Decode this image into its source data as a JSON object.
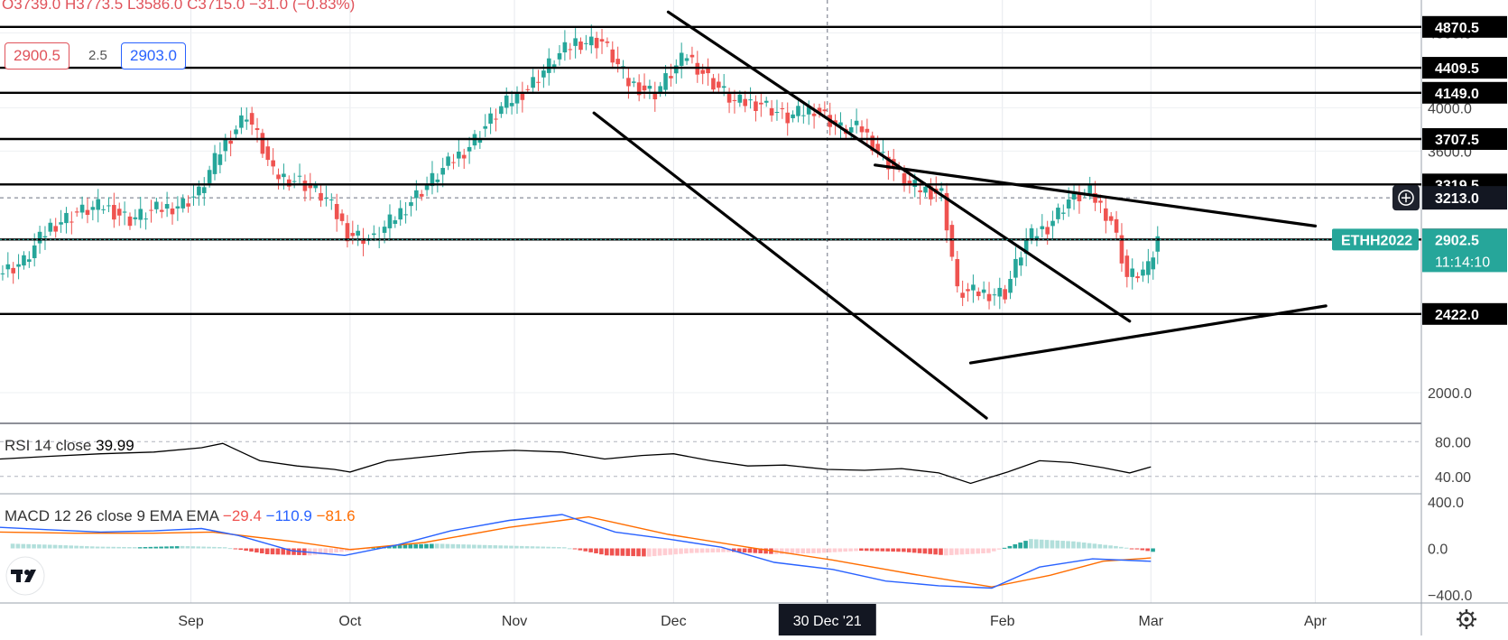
{
  "header": {
    "ohlc_text": "O3739.0 H3773.5 L3586.0 C3715.0 −31.0 (−0.83%)",
    "bid": "2900.5",
    "spread": "2.5",
    "ask": "2903.0"
  },
  "colors": {
    "up": "#26a69a",
    "down": "#ef5350",
    "rsi": "#000000",
    "macd": "#2962ff",
    "signal": "#ff6d00",
    "level_line": "#000000"
  },
  "chart_data": [
    {
      "type": "candlestick",
      "title": "",
      "instrument": "ETHH2022",
      "y_scale": "log",
      "ylim": [
        1860,
        5200
      ],
      "y_ticks": [
        "4800.0",
        "4000.0",
        "3600.0",
        "2000.0"
      ],
      "x_ticks": [
        "Sep",
        "Oct",
        "Nov",
        "Dec",
        "30 Dec '21",
        "Feb",
        "Mar",
        "Apr"
      ],
      "x_tick_dates": [
        "2021-09-01",
        "2021-10-01",
        "2021-11-01",
        "2021-12-01",
        "2021-12-30",
        "2022-02-01",
        "2022-03-01",
        "2022-04-01"
      ],
      "x_range": [
        "2021-07-27",
        "2022-04-21"
      ],
      "grid": true,
      "crosshair_date": "2021-12-30",
      "horizontal_levels": [
        {
          "label": "4870.5",
          "value": 4870.5
        },
        {
          "label": "4409.5",
          "value": 4409.5
        },
        {
          "label": "4149.0",
          "value": 4149.0
        },
        {
          "label": "3707.5",
          "value": 3707.5
        },
        {
          "label": "3319.5",
          "value": 3319.5
        },
        {
          "label": "2903.5",
          "value": 2903.5
        },
        {
          "label": "2422.0",
          "value": 2422.0
        }
      ],
      "price_labels": [
        {
          "label": "3213.0",
          "value": 3213.0,
          "style": "crosshair"
        },
        {
          "label": "2902.5",
          "value": 2902.5,
          "style": "last",
          "tag": "ETHH2022",
          "countdown": "11:14:10"
        }
      ],
      "trendlines": [
        {
          "from": {
            "date": "2021-11-30",
            "value": 5050
          },
          "to": {
            "date": "2022-02-25",
            "value": 2380
          }
        },
        {
          "from": {
            "date": "2021-11-16",
            "value": 3950
          },
          "to": {
            "date": "2022-01-29",
            "value": 1880
          }
        },
        {
          "from": {
            "date": "2022-01-08",
            "value": 3480
          },
          "to": {
            "date": "2022-04-01",
            "value": 3000
          }
        },
        {
          "from": {
            "date": "2022-01-26",
            "value": 2150
          },
          "to": {
            "date": "2022-04-03",
            "value": 2470
          }
        }
      ],
      "series": [
        {
          "name": "ETHH2022",
          "dates": [
            "2021-07-27",
            "2021-08-01",
            "2021-08-06",
            "2021-08-11",
            "2021-08-16",
            "2021-08-21",
            "2021-08-26",
            "2021-08-31",
            "2021-09-03",
            "2021-09-07",
            "2021-09-12",
            "2021-09-17",
            "2021-09-22",
            "2021-09-27",
            "2021-10-01",
            "2021-10-06",
            "2021-10-12",
            "2021-10-18",
            "2021-10-24",
            "2021-10-30",
            "2021-11-04",
            "2021-11-09",
            "2021-11-13",
            "2021-11-18",
            "2021-11-23",
            "2021-11-28",
            "2021-12-01",
            "2021-12-04",
            "2021-12-08",
            "2021-12-13",
            "2021-12-18",
            "2021-12-23",
            "2021-12-28",
            "2022-01-02",
            "2022-01-06",
            "2022-01-10",
            "2022-01-15",
            "2022-01-21",
            "2022-01-24",
            "2022-01-28",
            "2022-02-02",
            "2022-02-06",
            "2022-02-10",
            "2022-02-14",
            "2022-02-18",
            "2022-02-22",
            "2022-02-25",
            "2022-03-01"
          ],
          "close": [
            2750,
            3000,
            3100,
            3150,
            3050,
            3120,
            3170,
            3250,
            3600,
            3950,
            3400,
            3350,
            3200,
            2950,
            2900,
            3150,
            3400,
            3650,
            4000,
            4200,
            4500,
            4700,
            4700,
            4250,
            4150,
            4350,
            4550,
            4300,
            4050,
            4050,
            3900,
            4000,
            3800,
            3800,
            3550,
            3300,
            3250,
            2550,
            2550,
            2550,
            2900,
            3000,
            3200,
            3250,
            3050,
            2650,
            2700,
            2902.5
          ]
        }
      ]
    },
    {
      "type": "line",
      "title": "RSI 14 close 39.99",
      "series_label": "RSI 14 close",
      "value_label": "39.99",
      "ylim": [
        20,
        100
      ],
      "y_ticks": [
        "80.00",
        "40.00"
      ],
      "series": [
        {
          "name": "RSI",
          "dates": [
            "2021-07-27",
            "2021-08-05",
            "2021-08-15",
            "2021-08-25",
            "2021-09-03",
            "2021-09-07",
            "2021-09-14",
            "2021-09-21",
            "2021-09-28",
            "2021-10-01",
            "2021-10-08",
            "2021-10-16",
            "2021-10-24",
            "2021-11-01",
            "2021-11-10",
            "2021-11-18",
            "2021-11-25",
            "2021-12-01",
            "2021-12-08",
            "2021-12-15",
            "2021-12-22",
            "2021-12-30",
            "2022-01-06",
            "2022-01-13",
            "2022-01-20",
            "2022-01-26",
            "2022-02-02",
            "2022-02-08",
            "2022-02-14",
            "2022-02-20",
            "2022-02-25",
            "2022-03-01"
          ],
          "values": [
            60,
            63,
            66,
            68,
            73,
            78,
            58,
            52,
            48,
            45,
            58,
            63,
            68,
            70,
            68,
            60,
            64,
            66,
            58,
            52,
            53,
            48,
            47,
            49,
            44,
            32,
            45,
            58,
            56,
            50,
            44,
            51
          ]
        }
      ]
    },
    {
      "type": "line",
      "title": "MACD 12 26 close 9 EMA EMA",
      "series_label": "MACD 12 26 close 9 EMA EMA",
      "value_labels": [
        "−29.4",
        "−110.9",
        "−81.6"
      ],
      "ylim": [
        -460,
        460
      ],
      "y_ticks": [
        "400.0",
        "0.0",
        "−400.0"
      ],
      "series": [
        {
          "name": "MACD",
          "dates": [
            "2021-07-27",
            "2021-08-05",
            "2021-08-15",
            "2021-08-25",
            "2021-09-03",
            "2021-09-10",
            "2021-09-20",
            "2021-09-30",
            "2021-10-10",
            "2021-10-20",
            "2021-10-31",
            "2021-11-10",
            "2021-11-20",
            "2021-11-30",
            "2021-12-10",
            "2021-12-20",
            "2021-12-31",
            "2022-01-10",
            "2022-01-20",
            "2022-01-30",
            "2022-02-08",
            "2022-02-18",
            "2022-03-01"
          ],
          "values": [
            180,
            160,
            140,
            150,
            170,
            110,
            -20,
            -60,
            30,
            150,
            240,
            290,
            140,
            80,
            10,
            -120,
            -180,
            -280,
            -320,
            -340,
            -160,
            -90,
            -110.9
          ]
        },
        {
          "name": "Signal",
          "dates": [
            "2021-07-27",
            "2021-08-10",
            "2021-08-25",
            "2021-09-05",
            "2021-09-20",
            "2021-10-01",
            "2021-10-15",
            "2021-10-31",
            "2021-11-15",
            "2021-11-30",
            "2021-12-15",
            "2021-12-31",
            "2022-01-15",
            "2022-01-30",
            "2022-02-10",
            "2022-02-20",
            "2022-03-01"
          ],
          "values": [
            140,
            130,
            130,
            140,
            60,
            -10,
            50,
            180,
            270,
            120,
            10,
            -100,
            -220,
            -330,
            -230,
            -110,
            -81.6
          ]
        }
      ],
      "histogram": {
        "dates": [
          "2021-07-29",
          "2021-08-06",
          "2021-08-14",
          "2021-08-22",
          "2021-08-30",
          "2021-09-07",
          "2021-09-15",
          "2021-09-23",
          "2021-10-01",
          "2021-10-09",
          "2021-10-17",
          "2021-10-25",
          "2021-11-02",
          "2021-11-10",
          "2021-11-18",
          "2021-11-26",
          "2021-12-04",
          "2021-12-12",
          "2021-12-20",
          "2021-12-28",
          "2022-01-05",
          "2022-01-13",
          "2022-01-21",
          "2022-01-29",
          "2022-02-06",
          "2022-02-14",
          "2022-02-22",
          "2022-03-01"
        ],
        "values": [
          40,
          30,
          15,
          10,
          20,
          10,
          -50,
          -60,
          -20,
          30,
          40,
          30,
          20,
          10,
          -60,
          -70,
          -40,
          -30,
          -50,
          -40,
          -20,
          -30,
          -60,
          -40,
          80,
          60,
          20,
          -29.4
        ]
      }
    }
  ],
  "x_axis": {
    "highlight_label": "30 Dec '21"
  }
}
